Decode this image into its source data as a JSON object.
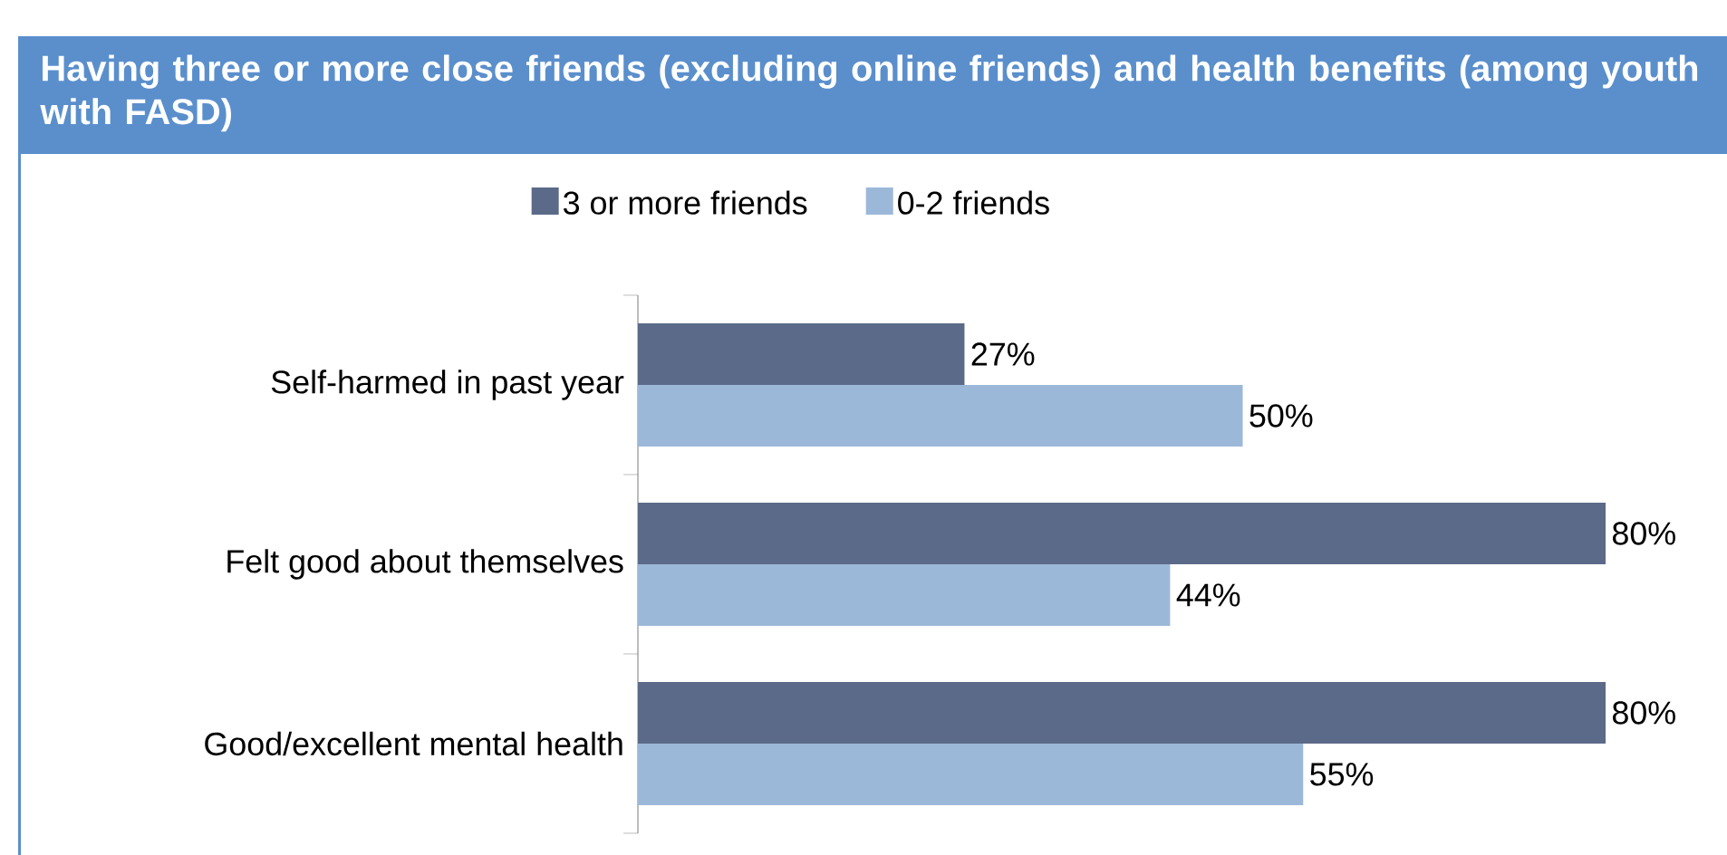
{
  "chart_data": {
    "type": "bar",
    "orientation": "horizontal",
    "title": "Having three or more close friends (excluding online friends) and health benefits (among youth with FASD)",
    "categories": [
      "Self-harmed in past year",
      "Felt good about themselves",
      "Good/excellent mental health"
    ],
    "series": [
      {
        "name": "3 or more friends",
        "color": "#5b6a88",
        "values": [
          27,
          80,
          80
        ],
        "value_labels": [
          "27%",
          "80%",
          "80%"
        ]
      },
      {
        "name": "0-2 friends",
        "color": "#9cb8d9",
        "values": [
          50,
          44,
          55
        ],
        "value_labels": [
          "50%",
          "44%",
          "55%"
        ]
      }
    ],
    "tick_labels": "y",
    "legend": "top"
  }
}
